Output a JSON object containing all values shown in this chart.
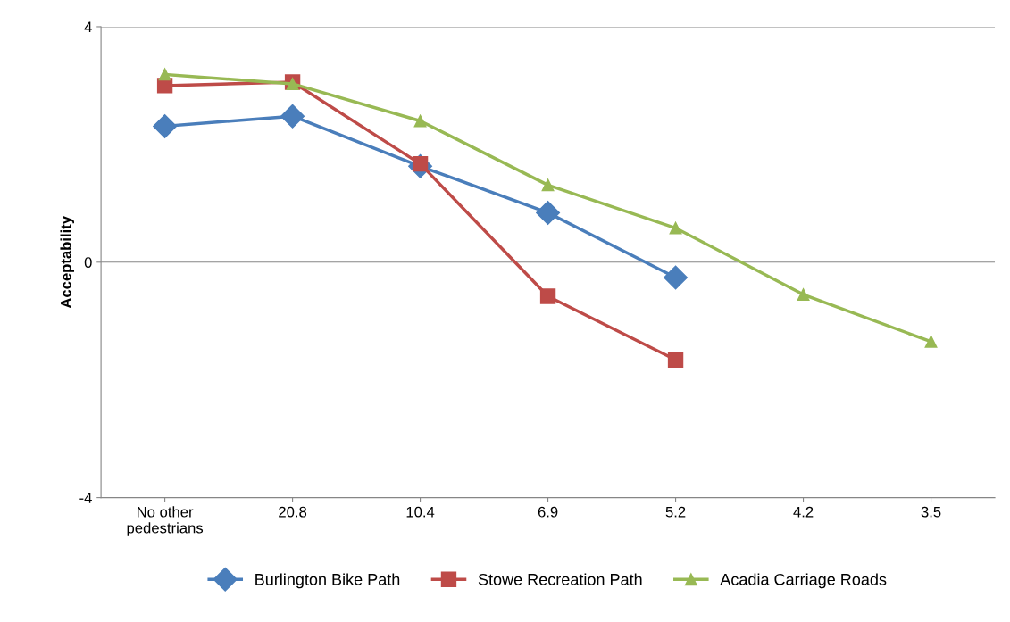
{
  "chart_data": {
    "type": "line",
    "ylabel": "Acceptability",
    "categories": [
      "No other\npedestrians",
      "20.8",
      "10.4",
      "6.9",
      "5.2",
      "4.2",
      "3.5"
    ],
    "series": [
      {
        "name": "Burlington Bike Path",
        "color": "#4a7ebb",
        "marker": "diamond",
        "values": [
          2.31,
          2.48,
          1.63,
          0.84,
          -0.26,
          null,
          null
        ]
      },
      {
        "name": "Stowe Recreation Path",
        "color": "#be4b48",
        "marker": "square",
        "values": [
          3.0,
          3.06,
          1.67,
          -0.58,
          -1.66,
          null,
          null
        ]
      },
      {
        "name": "Acadia Carriage Roads",
        "color": "#98b954",
        "marker": "triangle",
        "values": [
          3.19,
          3.03,
          2.4,
          1.31,
          0.58,
          -0.55,
          -1.35
        ]
      }
    ],
    "ylim": [
      -4,
      4
    ],
    "yticks": [
      -4,
      0,
      4
    ],
    "grid": "y",
    "legend": "bottom",
    "line_style": "solid"
  }
}
